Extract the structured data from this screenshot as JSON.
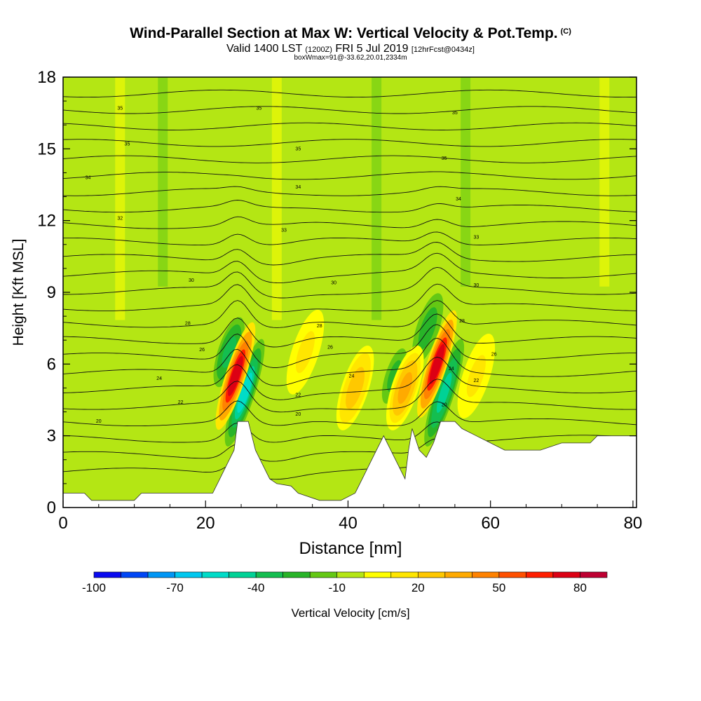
{
  "title": {
    "main": "Wind-Parallel Section at Max W: Vertical Velocity & Pot.Temp.",
    "copyright": "(C)",
    "valid_prefix": "Valid 1400 LST",
    "valid_utc": "(1200Z)",
    "valid_date": "FRI 5 Jul 2019",
    "forecast": "[12hrFcst@0434z]",
    "boxinfo": "boxWmax=91@-33.62,20.01,2334m"
  },
  "chart_data": {
    "type": "heatmap",
    "xlabel": "Distance [nm]",
    "ylabel": "Height [Kft MSL]",
    "xlim": [
      0,
      80.5
    ],
    "ylim": [
      0,
      18
    ],
    "xticks": [
      0,
      20,
      40,
      60,
      80
    ],
    "yticks": [
      0,
      3,
      6,
      9,
      12,
      15,
      18
    ],
    "grid": false,
    "colorbar": {
      "label": "Vertical Velocity [cm/s]",
      "levels": [
        -100,
        -90,
        -80,
        -70,
        -60,
        -50,
        -40,
        -30,
        -20,
        -10,
        0,
        10,
        20,
        30,
        40,
        50,
        60,
        70,
        80,
        90
      ],
      "tick_labels": [
        -100,
        -70,
        -40,
        -10,
        20,
        50,
        80
      ],
      "colors": [
        "#0a0af0",
        "#0046f5",
        "#0096f5",
        "#00c8f0",
        "#00dcc8",
        "#00d296",
        "#14be50",
        "#28b428",
        "#64c814",
        "#b4e614",
        "#ffff00",
        "#ffe600",
        "#ffc800",
        "#ffaa00",
        "#ff8200",
        "#ff5000",
        "#ff1e00",
        "#dc0014",
        "#be0032"
      ]
    },
    "terrain": [
      [
        0,
        0.6
      ],
      [
        3,
        0.6
      ],
      [
        4,
        0.3
      ],
      [
        10,
        0.3
      ],
      [
        11,
        0.6
      ],
      [
        21,
        0.6
      ],
      [
        22,
        1.2
      ],
      [
        23,
        1.8
      ],
      [
        24,
        2.4
      ],
      [
        24.5,
        3.6
      ],
      [
        26,
        3.6
      ],
      [
        26.5,
        3
      ],
      [
        27,
        2.4
      ],
      [
        28,
        1.8
      ],
      [
        29,
        1.2
      ],
      [
        30,
        1
      ],
      [
        32,
        0.9
      ],
      [
        33,
        0.6
      ],
      [
        36,
        0.3
      ],
      [
        39,
        0.3
      ],
      [
        41,
        0.6
      ],
      [
        42,
        1.2
      ],
      [
        43,
        1.8
      ],
      [
        44,
        2.4
      ],
      [
        45,
        3
      ],
      [
        46,
        2.4
      ],
      [
        47,
        1.8
      ],
      [
        48,
        1.2
      ],
      [
        48.5,
        2.4
      ],
      [
        49,
        3.3
      ],
      [
        50,
        2.4
      ],
      [
        51,
        2.1
      ],
      [
        52,
        2.7
      ],
      [
        53,
        3.6
      ],
      [
        55,
        3.6
      ],
      [
        56,
        3.3
      ],
      [
        58,
        3
      ],
      [
        60,
        2.7
      ],
      [
        62,
        2.4
      ],
      [
        67,
        2.4
      ],
      [
        70,
        2.7
      ],
      [
        74,
        2.7
      ],
      [
        75,
        3
      ],
      [
        80.5,
        3
      ]
    ],
    "updrafts": [
      {
        "x": 24.2,
        "y": 5.5,
        "w": 90
      },
      {
        "x": 52.5,
        "y": 6.0,
        "w": 85
      },
      {
        "x": 48.0,
        "y": 5.0,
        "w": 40
      },
      {
        "x": 41.0,
        "y": 5.0,
        "w": 30
      },
      {
        "x": 34.0,
        "y": 6.5,
        "w": 15
      },
      {
        "x": 58.0,
        "y": 5.5,
        "w": 15
      }
    ],
    "downdrafts": [
      {
        "x": 25.5,
        "y": 4.8,
        "w": -60
      },
      {
        "x": 23.3,
        "y": 6.5,
        "w": -40
      },
      {
        "x": 53.5,
        "y": 4.8,
        "w": -55
      },
      {
        "x": 51.2,
        "y": 7.5,
        "w": -30
      },
      {
        "x": 46.5,
        "y": 5.5,
        "w": -25
      }
    ],
    "theta_levels": [
      300,
      302,
      304,
      306,
      308,
      310,
      312,
      314,
      316,
      318,
      320,
      322,
      324,
      326,
      328,
      330,
      332,
      334,
      336,
      338,
      340,
      342,
      344,
      346
    ],
    "contour_labels": [
      {
        "x": 8,
        "y": 16.7,
        "text": "35"
      },
      {
        "x": 27.5,
        "y": 16.7,
        "text": "35"
      },
      {
        "x": 55,
        "y": 16.5,
        "text": "35"
      },
      {
        "x": 9,
        "y": 15.2,
        "text": "35"
      },
      {
        "x": 33,
        "y": 15.0,
        "text": "35"
      },
      {
        "x": 53.5,
        "y": 14.6,
        "text": "35"
      },
      {
        "x": 3.5,
        "y": 13.8,
        "text": "34"
      },
      {
        "x": 33,
        "y": 13.4,
        "text": "34"
      },
      {
        "x": 55.5,
        "y": 12.9,
        "text": "34"
      },
      {
        "x": 8,
        "y": 12.1,
        "text": "32"
      },
      {
        "x": 31,
        "y": 11.6,
        "text": "33"
      },
      {
        "x": 58,
        "y": 11.3,
        "text": "33"
      },
      {
        "x": 18,
        "y": 9.5,
        "text": "30"
      },
      {
        "x": 38,
        "y": 9.4,
        "text": "30"
      },
      {
        "x": 58,
        "y": 9.3,
        "text": "30"
      },
      {
        "x": 17.5,
        "y": 7.7,
        "text": "28"
      },
      {
        "x": 36,
        "y": 7.6,
        "text": "28"
      },
      {
        "x": 56,
        "y": 7.8,
        "text": "28"
      },
      {
        "x": 19.5,
        "y": 6.6,
        "text": "26"
      },
      {
        "x": 37.5,
        "y": 6.7,
        "text": "26"
      },
      {
        "x": 60.5,
        "y": 6.4,
        "text": "26"
      },
      {
        "x": 13.5,
        "y": 5.4,
        "text": "24"
      },
      {
        "x": 40.5,
        "y": 5.5,
        "text": "24"
      },
      {
        "x": 54.5,
        "y": 5.8,
        "text": "24"
      },
      {
        "x": 16.5,
        "y": 4.4,
        "text": "22"
      },
      {
        "x": 33,
        "y": 4.7,
        "text": "22"
      },
      {
        "x": 58,
        "y": 5.3,
        "text": "22"
      },
      {
        "x": 5,
        "y": 3.6,
        "text": "20"
      },
      {
        "x": 33,
        "y": 3.9,
        "text": "20"
      },
      {
        "x": 53.5,
        "y": 4.3,
        "text": "20"
      }
    ]
  }
}
